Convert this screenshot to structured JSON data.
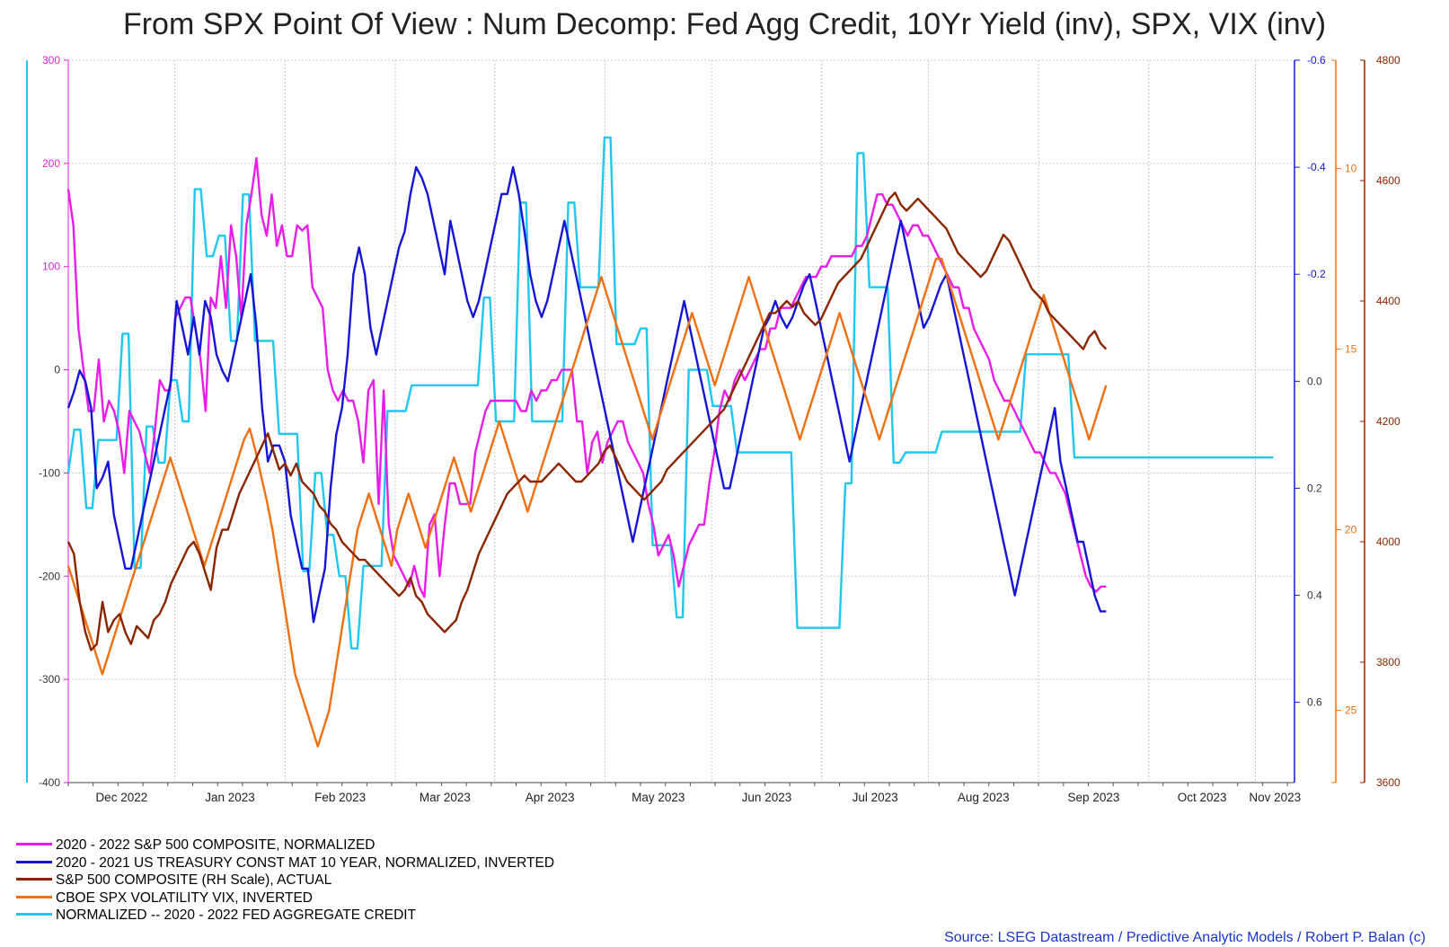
{
  "chart_data": {
    "type": "line",
    "title": "From SPX Point Of View : Num Decomp: Fed Agg Credit, 10Yr Yield (inv), SPX, VIX (inv)",
    "source": "Source: LSEG Datastream / Predictive Analytic Models / Robert P. Balan (c)",
    "x_ticks": [
      "Dec 2022",
      "Jan 2023",
      "Feb 2023",
      "Mar 2023",
      "Apr 2023",
      "May 2023",
      "Jun 2023",
      "Jul 2023",
      "Aug 2023",
      "Sep 2023",
      "Oct 2023",
      "Nov 2023"
    ],
    "x_range_days": [
      0,
      345
    ],
    "axes": {
      "left_main": {
        "color": "#e81ee8",
        "range": [
          -400,
          300
        ],
        "ticks": [
          "300",
          "200",
          "100",
          "0",
          "-100",
          "-200",
          "-300",
          "-400"
        ]
      },
      "right_yield": {
        "color": "#1515d6",
        "range": [
          -0.6,
          0.75
        ],
        "inverted": true,
        "ticks": [
          "-0.6",
          "-0.4",
          "-0.2",
          "0.0",
          "0.2",
          "0.4",
          "0.6"
        ]
      },
      "right_vix": {
        "color": "#f07010",
        "range": [
          7,
          27
        ],
        "inverted": true,
        "ticks": [
          "10",
          "15",
          "20",
          "25"
        ]
      },
      "right_spx": {
        "color": "#8b2500",
        "range": [
          3600,
          4800
        ],
        "ticks": [
          "4800",
          "4600",
          "4400",
          "4200",
          "4000",
          "3800",
          "3600"
        ]
      }
    },
    "series": [
      {
        "name": "2020 - 2022 S&P 500 COMPOSITE, NORMALIZED",
        "color": "#e81ee8",
        "axis": "left_main",
        "values": [
          175,
          140,
          40,
          0,
          -40,
          -40,
          10,
          -50,
          -30,
          -40,
          -60,
          -100,
          -40,
          -50,
          -60,
          -80,
          -100,
          -60,
          -10,
          -20,
          -20,
          50,
          60,
          70,
          70,
          40,
          10,
          -40,
          70,
          60,
          110,
          60,
          140,
          110,
          50,
          140,
          170,
          205,
          150,
          130,
          170,
          120,
          140,
          110,
          110,
          140,
          135,
          140,
          80,
          70,
          60,
          0,
          -20,
          -30,
          -20,
          -30,
          -30,
          -50,
          -90,
          -20,
          -10,
          -130,
          -20,
          -150,
          -180,
          -190,
          -200,
          -210,
          -190,
          -210,
          -220,
          -150,
          -140,
          -200,
          -150,
          -110,
          -110,
          -130,
          -130,
          -130,
          -80,
          -60,
          -40,
          -30,
          -30,
          -30,
          -30,
          -30,
          -30,
          -40,
          -40,
          -20,
          -30,
          -20,
          -20,
          -10,
          -10,
          0,
          0,
          0,
          -50,
          -50,
          -100,
          -70,
          -60,
          -90,
          -70,
          -60,
          -50,
          -50,
          -70,
          -80,
          -90,
          -100,
          -130,
          -150,
          -180,
          -170,
          -160,
          -180,
          -210,
          -190,
          -170,
          -160,
          -150,
          -150,
          -110,
          -80,
          -40,
          -20,
          -30,
          -10,
          0,
          -10,
          0,
          10,
          20,
          20,
          40,
          40,
          60,
          60,
          60,
          70,
          80,
          90,
          90,
          90,
          100,
          100,
          110,
          110,
          110,
          110,
          110,
          120,
          120,
          130,
          150,
          170,
          170,
          160,
          160,
          150,
          140,
          130,
          140,
          140,
          130,
          130,
          120,
          110,
          100,
          90,
          80,
          80,
          60,
          60,
          40,
          30,
          20,
          10,
          -10,
          -20,
          -30,
          -30,
          -40,
          -50,
          -60,
          -70,
          -80,
          -80,
          -90,
          -100,
          -100,
          -110,
          -120,
          -140,
          -160,
          -180,
          -200,
          -210,
          -215,
          -210,
          -210
        ]
      },
      {
        "name": "2020 - 2021 US TREASURY CONST MAT 10 YEAR, NORMALIZED, INVERTED",
        "color": "#1515d6",
        "axis": "right_yield",
        "values": [
          0.05,
          0.02,
          -0.02,
          0.0,
          0.05,
          0.2,
          0.18,
          0.15,
          0.25,
          0.3,
          0.35,
          0.35,
          0.3,
          0.25,
          0.2,
          0.15,
          0.1,
          0.05,
          0.0,
          -0.15,
          -0.1,
          -0.05,
          -0.12,
          -0.05,
          -0.15,
          -0.12,
          -0.05,
          -0.02,
          0.0,
          -0.05,
          -0.1,
          -0.15,
          -0.2,
          -0.1,
          0.05,
          0.15,
          0.12,
          0.12,
          0.15,
          0.25,
          0.3,
          0.35,
          0.35,
          0.45,
          0.4,
          0.35,
          0.2,
          0.1,
          0.05,
          -0.05,
          -0.2,
          -0.25,
          -0.2,
          -0.1,
          -0.05,
          -0.1,
          -0.15,
          -0.2,
          -0.25,
          -0.28,
          -0.35,
          -0.4,
          -0.38,
          -0.35,
          -0.3,
          -0.25,
          -0.2,
          -0.3,
          -0.25,
          -0.2,
          -0.15,
          -0.12,
          -0.15,
          -0.2,
          -0.25,
          -0.3,
          -0.35,
          -0.35,
          -0.4,
          -0.35,
          -0.28,
          -0.2,
          -0.15,
          -0.12,
          -0.15,
          -0.2,
          -0.25,
          -0.3,
          -0.25,
          -0.2,
          -0.15,
          -0.1,
          -0.05,
          0.0,
          0.05,
          0.1,
          0.15,
          0.2,
          0.25,
          0.3,
          0.25,
          0.2,
          0.15,
          0.1,
          0.05,
          0.0,
          -0.05,
          -0.1,
          -0.15,
          -0.1,
          -0.05,
          0.0,
          0.05,
          0.1,
          0.15,
          0.2,
          0.2,
          0.15,
          0.1,
          0.05,
          0.0,
          -0.05,
          -0.1,
          -0.12,
          -0.15,
          -0.12,
          -0.1,
          -0.12,
          -0.15,
          -0.18,
          -0.2,
          -0.15,
          -0.1,
          -0.05,
          0.0,
          0.05,
          0.1,
          0.15,
          0.1,
          0.05,
          0.0,
          -0.05,
          -0.1,
          -0.15,
          -0.2,
          -0.25,
          -0.3,
          -0.25,
          -0.2,
          -0.15,
          -0.1,
          -0.12,
          -0.15,
          -0.18,
          -0.2,
          -0.15,
          -0.1,
          -0.05,
          0.0,
          0.05,
          0.1,
          0.15,
          0.2,
          0.25,
          0.3,
          0.35,
          0.4,
          0.35,
          0.3,
          0.25,
          0.2,
          0.15,
          0.1,
          0.05,
          0.15,
          0.2,
          0.25,
          0.3,
          0.3,
          0.35,
          0.4,
          0.43,
          0.43
        ]
      },
      {
        "name": "S&P 500 COMPOSITE (RH Scale), ACTUAL",
        "color": "#8b2500",
        "axis": "right_spx",
        "values": [
          4000,
          3980,
          3900,
          3850,
          3820,
          3830,
          3900,
          3850,
          3870,
          3880,
          3850,
          3830,
          3860,
          3850,
          3840,
          3870,
          3880,
          3900,
          3930,
          3950,
          3970,
          3990,
          4000,
          3980,
          3950,
          3920,
          3990,
          4020,
          4020,
          4050,
          4080,
          4100,
          4120,
          4140,
          4160,
          4180,
          4150,
          4120,
          4130,
          4110,
          4130,
          4100,
          4090,
          4080,
          4060,
          4050,
          4030,
          4020,
          4000,
          3990,
          3980,
          3970,
          3970,
          3960,
          3950,
          3940,
          3930,
          3920,
          3910,
          3920,
          3940,
          3910,
          3900,
          3880,
          3870,
          3860,
          3850,
          3860,
          3870,
          3900,
          3920,
          3950,
          3980,
          4000,
          4020,
          4040,
          4060,
          4080,
          4090,
          4100,
          4110,
          4100,
          4100,
          4100,
          4110,
          4120,
          4130,
          4120,
          4110,
          4100,
          4100,
          4110,
          4120,
          4130,
          4150,
          4160,
          4140,
          4120,
          4100,
          4090,
          4080,
          4070,
          4080,
          4090,
          4100,
          4120,
          4130,
          4140,
          4150,
          4160,
          4170,
          4180,
          4190,
          4200,
          4210,
          4220,
          4240,
          4260,
          4280,
          4300,
          4320,
          4340,
          4360,
          4380,
          4380,
          4390,
          4400,
          4390,
          4400,
          4380,
          4370,
          4360,
          4370,
          4390,
          4410,
          4430,
          4440,
          4450,
          4460,
          4470,
          4490,
          4510,
          4530,
          4550,
          4570,
          4580,
          4560,
          4550,
          4560,
          4570,
          4560,
          4550,
          4540,
          4530,
          4520,
          4500,
          4480,
          4470,
          4460,
          4450,
          4440,
          4450,
          4470,
          4490,
          4510,
          4500,
          4480,
          4460,
          4440,
          4420,
          4410,
          4400,
          4380,
          4370,
          4360,
          4350,
          4340,
          4330,
          4320,
          4340,
          4350,
          4330,
          4320
        ]
      },
      {
        "name": "CBOE SPX VOLATILITY VIX, INVERTED",
        "color": "#f07010",
        "axis": "right_vix",
        "values": [
          21,
          21.5,
          22,
          22.5,
          23,
          23.5,
          24,
          23.5,
          23,
          22.5,
          22,
          21.5,
          21,
          20.5,
          20,
          19.5,
          19,
          18.5,
          18,
          18.5,
          19,
          19.5,
          20,
          20.5,
          21,
          20.5,
          20,
          19.5,
          19,
          18.5,
          18,
          17.5,
          17.2,
          17.8,
          18.5,
          19.2,
          20,
          21,
          22,
          23,
          24,
          24.5,
          25,
          25.5,
          26,
          25.5,
          25,
          24,
          23,
          22,
          21,
          20,
          19.5,
          19,
          19.5,
          20,
          20.5,
          21,
          20,
          19.5,
          19,
          19.5,
          20,
          20.5,
          20,
          19.5,
          19,
          18.5,
          18,
          18.5,
          19,
          19.5,
          19,
          18.5,
          18,
          17.5,
          17,
          17.5,
          18,
          18.5,
          19,
          19.5,
          19,
          18.5,
          18,
          17.5,
          17,
          16.5,
          16,
          15.5,
          15,
          14.5,
          14,
          13.5,
          13,
          13.5,
          14,
          14.5,
          15,
          15.5,
          16,
          16.5,
          17,
          17.5,
          17,
          16.5,
          16,
          15.5,
          15,
          14.5,
          14,
          14.5,
          15,
          15.5,
          16,
          15.5,
          15,
          14.5,
          14,
          13.5,
          13,
          13.5,
          14,
          14.5,
          15,
          15.5,
          16,
          16.5,
          17,
          17.5,
          17,
          16.5,
          16,
          15.5,
          15,
          14.5,
          14,
          14.5,
          15,
          15.5,
          16,
          16.5,
          17,
          17.5,
          17,
          16.5,
          16,
          15.5,
          15,
          14.5,
          14,
          13.5,
          13,
          12.5,
          12.5,
          13,
          13.5,
          14,
          14.5,
          15,
          15.5,
          16,
          16.5,
          17,
          17.5,
          17,
          16.5,
          16,
          15.5,
          15,
          14.5,
          14,
          13.5,
          14,
          14.5,
          15,
          15.5,
          16,
          16.5,
          17,
          17.5,
          17,
          16.5,
          16
        ]
      },
      {
        "name": "NORMALIZED -- 2020 - 2022 FED AGGREGATE CREDIT",
        "color": "#1ec8f0",
        "axis": "left_main",
        "values": [
          -100,
          -58,
          -58,
          -134,
          -134,
          -68,
          -68,
          -68,
          -68,
          35,
          35,
          -192,
          -192,
          -55,
          -55,
          -90,
          -90,
          -10,
          -10,
          -50,
          -50,
          175,
          175,
          110,
          110,
          130,
          130,
          28,
          28,
          170,
          170,
          28,
          28,
          28,
          28,
          -62,
          -62,
          -62,
          -62,
          -195,
          -195,
          -100,
          -100,
          -160,
          -160,
          -200,
          -200,
          -270,
          -270,
          -190,
          -190,
          -190,
          -190,
          -40,
          -40,
          -40,
          -40,
          -15,
          -15,
          -15,
          -15,
          -15,
          -15,
          -15,
          -15,
          -15,
          -15,
          -15,
          -15,
          70,
          70,
          -50,
          -50,
          -50,
          -50,
          162,
          162,
          -50,
          -50,
          -50,
          -50,
          -50,
          -50,
          162,
          162,
          80,
          80,
          80,
          80,
          225,
          225,
          25,
          25,
          25,
          25,
          40,
          40,
          -170,
          -170,
          -170,
          -170,
          -240,
          -240,
          0,
          0,
          0,
          0,
          -35,
          -35,
          -35,
          -35,
          -80,
          -80,
          -80,
          -80,
          -80,
          -80,
          -80,
          -80,
          -80,
          -80,
          -250,
          -250,
          -250,
          -250,
          -250,
          -250,
          -250,
          -250,
          -110,
          -110,
          210,
          210,
          80,
          80,
          80,
          80,
          -90,
          -90,
          -80,
          -80,
          -80,
          -80,
          -80,
          -80,
          -60,
          -60,
          -60,
          -60,
          -60,
          -60,
          -60,
          -60,
          -60,
          -60,
          -60,
          -60,
          -60,
          -60,
          15,
          15,
          15,
          15,
          15,
          15,
          15,
          15,
          -85,
          -85,
          -85,
          -85,
          -85,
          -85,
          -85,
          -85,
          -85,
          -85,
          -85,
          -85,
          -85,
          -85,
          -85,
          -85,
          -85,
          -85,
          -85,
          -85,
          -85,
          -85,
          -85,
          -85,
          -85,
          -85,
          -85,
          -85,
          -85,
          -85,
          -85,
          -85,
          -85,
          -85
        ]
      }
    ]
  }
}
